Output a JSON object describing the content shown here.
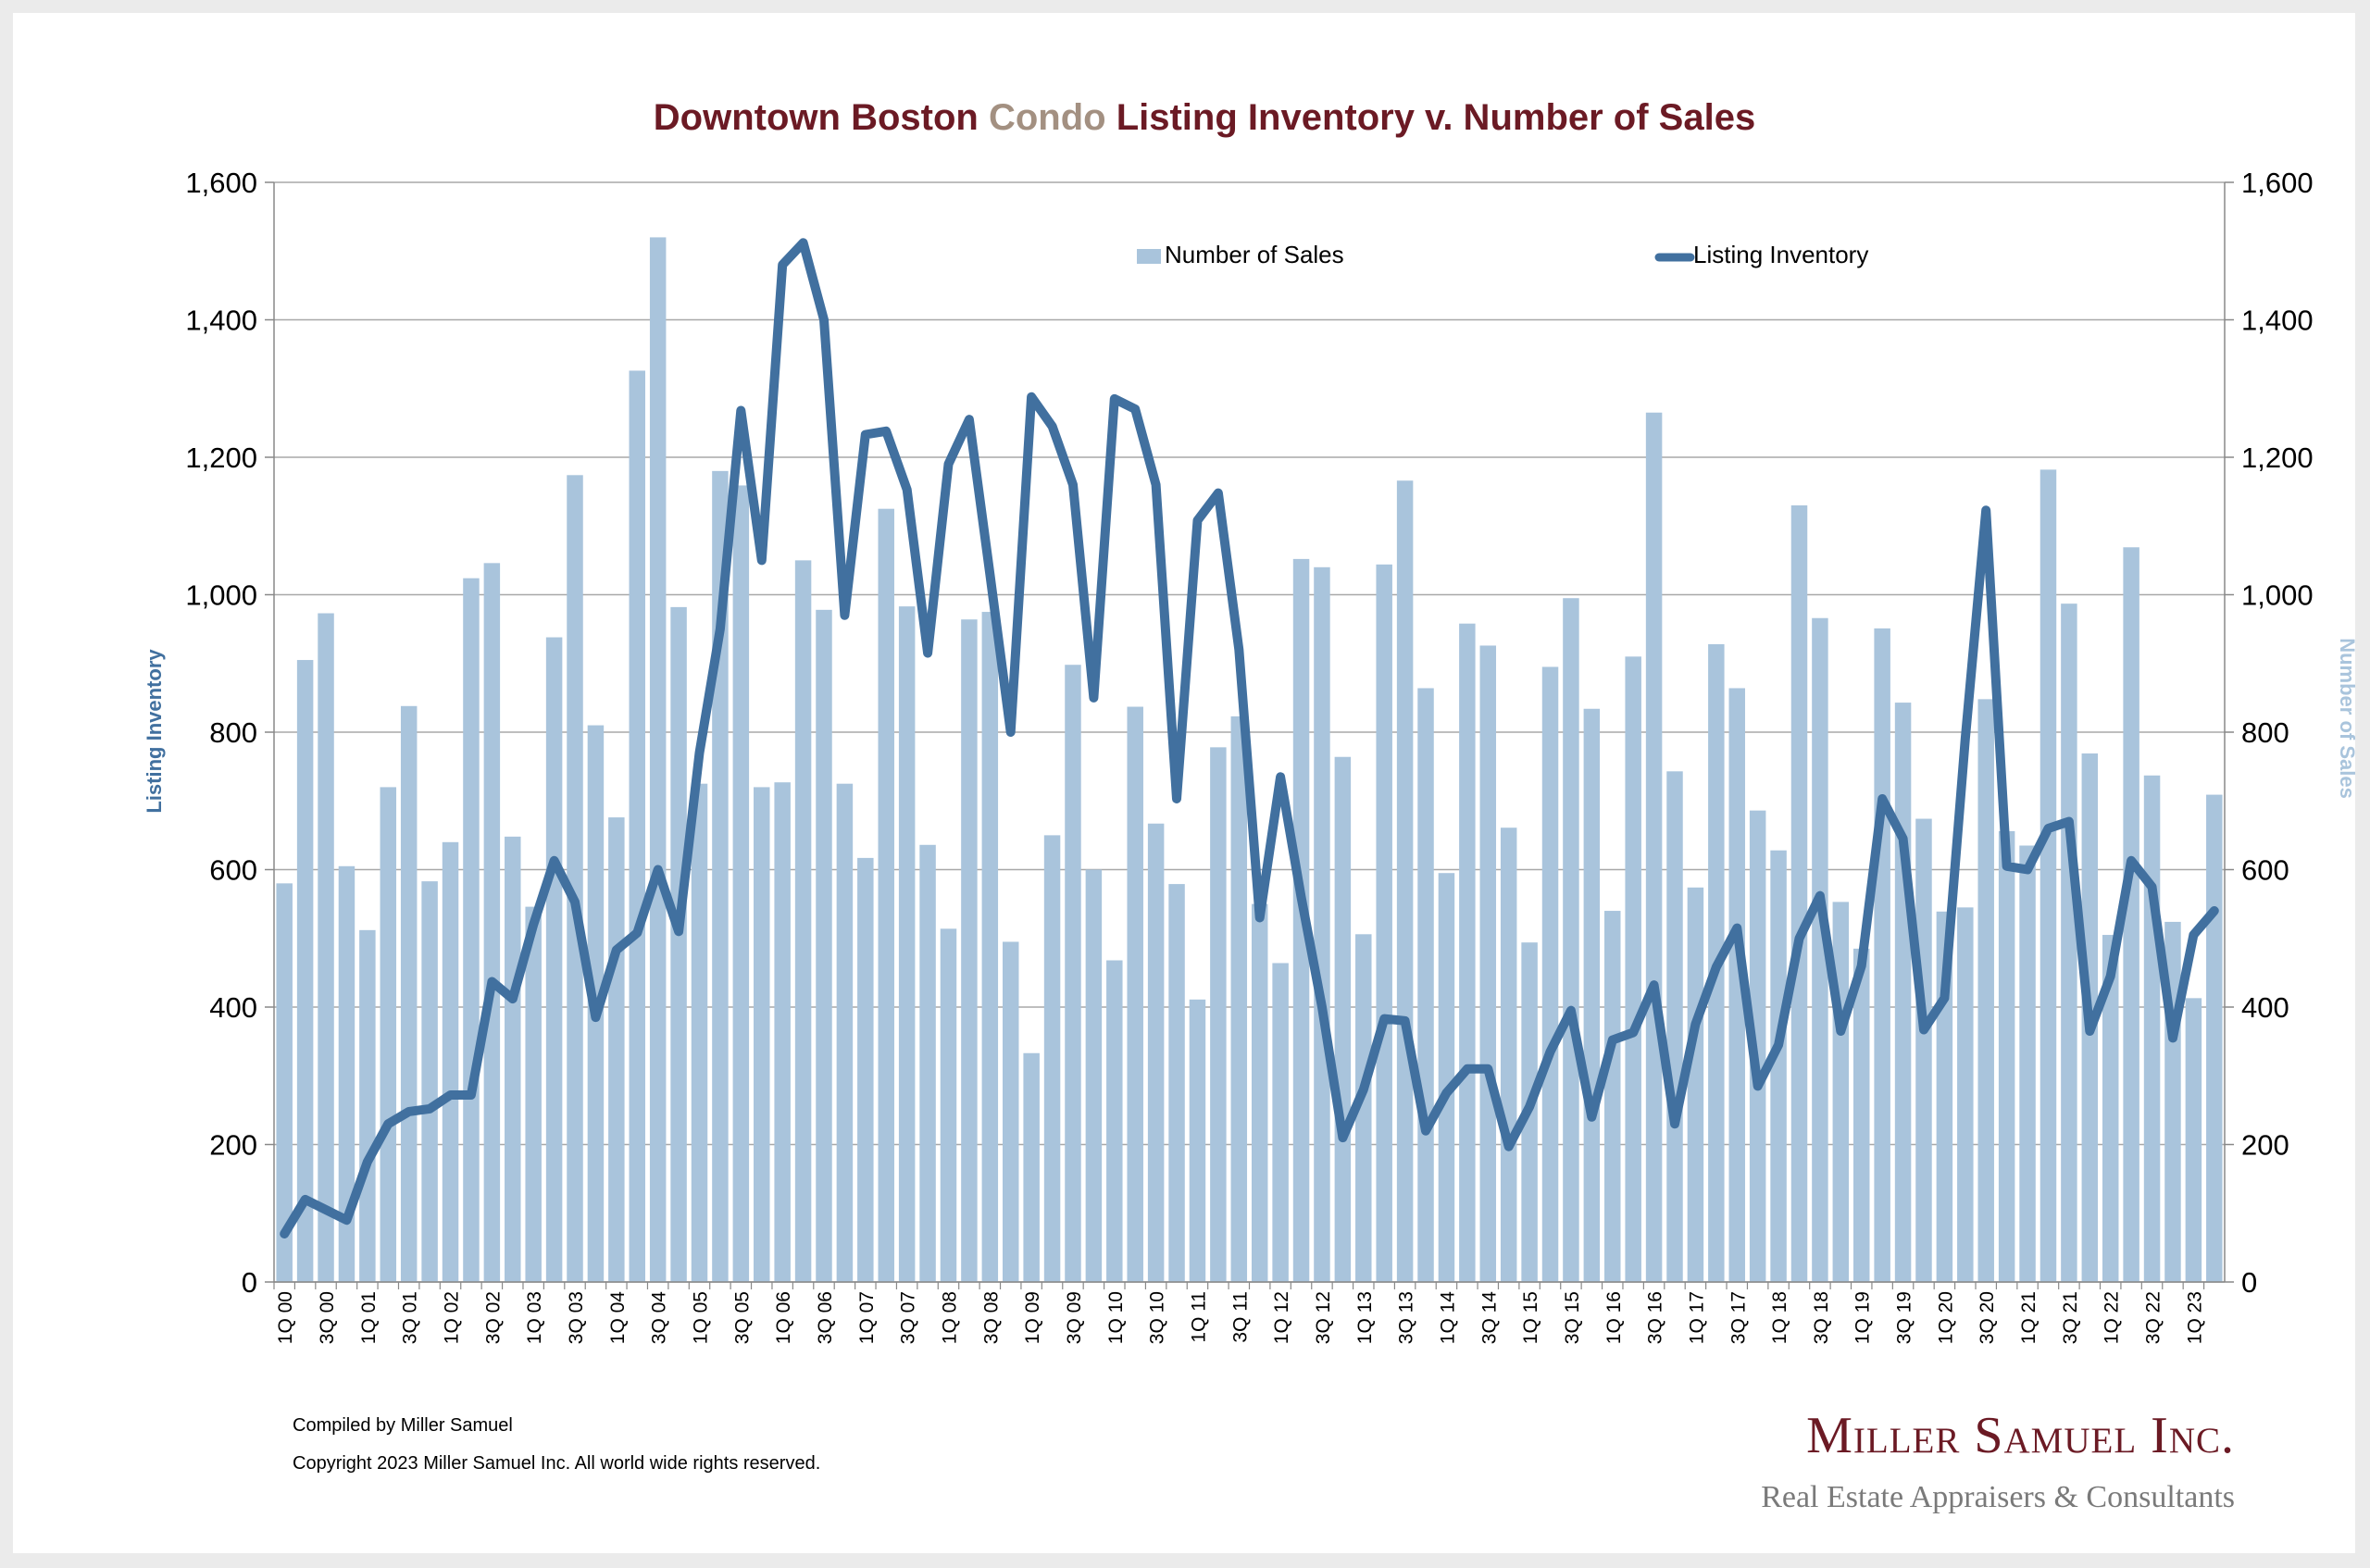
{
  "chart_data": {
    "type": "bar+line",
    "title": {
      "part1": "Downtown Boston ",
      "part2": "Condo",
      "part3": " Listing Inventory v. Number of Sales"
    },
    "left_axis_label": "Listing Inventory",
    "right_axis_label": "Number of Sales",
    "ylim": [
      0,
      1600
    ],
    "y_ticks": [
      0,
      200,
      400,
      600,
      800,
      1000,
      1200,
      1400,
      1600
    ],
    "y_tick_labels": [
      "0",
      "200",
      "400",
      "600",
      "800",
      "1,000",
      "1,200",
      "1,400",
      "1,600"
    ],
    "grid": true,
    "legend_position": "top-center",
    "colors": {
      "sales_bar": "#a9c4dc",
      "inventory_line": "#41709f",
      "title_dark": "#6b1a24",
      "title_accent": "#a39081"
    },
    "categories": [
      "1Q 00",
      "2Q 00",
      "3Q 00",
      "4Q 00",
      "1Q 01",
      "2Q 01",
      "3Q 01",
      "4Q 01",
      "1Q 02",
      "2Q 02",
      "3Q 02",
      "4Q 02",
      "1Q 03",
      "2Q 03",
      "3Q 03",
      "4Q 03",
      "1Q 04",
      "2Q 04",
      "3Q 04",
      "4Q 04",
      "1Q 05",
      "2Q 05",
      "3Q 05",
      "4Q 05",
      "1Q 06",
      "2Q 06",
      "3Q 06",
      "4Q 06",
      "1Q 07",
      "2Q 07",
      "3Q 07",
      "4Q 07",
      "1Q 08",
      "2Q 08",
      "3Q 08",
      "4Q 08",
      "1Q 09",
      "2Q 09",
      "3Q 09",
      "4Q 09",
      "1Q 10",
      "2Q 10",
      "3Q 10",
      "4Q 10",
      "1Q 11",
      "2Q 11",
      "3Q 11",
      "4Q 11",
      "1Q 12",
      "2Q 12",
      "3Q 12",
      "4Q 12",
      "1Q 13",
      "2Q 13",
      "3Q 13",
      "4Q 13",
      "1Q 14",
      "2Q 14",
      "3Q 14",
      "4Q 14",
      "1Q 15",
      "2Q 15",
      "3Q 15",
      "4Q 15",
      "1Q 16",
      "2Q 16",
      "3Q 16",
      "4Q 16",
      "1Q 17",
      "2Q 17",
      "3Q 17",
      "4Q 17",
      "1Q 18",
      "2Q 18",
      "3Q 18",
      "4Q 18",
      "1Q 19",
      "2Q 19",
      "3Q 19",
      "4Q 19",
      "1Q 20",
      "2Q 20",
      "3Q 20",
      "4Q 20",
      "1Q 21",
      "2Q 21",
      "3Q 21",
      "4Q 21",
      "1Q 22",
      "2Q 22",
      "3Q 22",
      "4Q 22",
      "1Q 23",
      "2Q 23"
    ],
    "x_tick_labels": [
      "1Q 00",
      "3Q 00",
      "1Q 01",
      "3Q 01",
      "1Q 02",
      "3Q 02",
      "1Q 03",
      "3Q 03",
      "1Q 04",
      "3Q 04",
      "1Q 05",
      "3Q 05",
      "1Q 06",
      "3Q 06",
      "1Q 07",
      "3Q 07",
      "1Q 08",
      "3Q 08",
      "1Q 09",
      "3Q 09",
      "1Q 10",
      "3Q 10",
      "1Q 11",
      "3Q 11",
      "1Q 12",
      "3Q 12",
      "1Q 13",
      "3Q 13",
      "1Q 14",
      "3Q 14",
      "1Q 15",
      "3Q 15",
      "1Q 16",
      "3Q 16",
      "1Q 17",
      "3Q 17",
      "1Q 18",
      "3Q 18",
      "1Q 19",
      "3Q 19",
      "1Q 20",
      "3Q 20",
      "1Q 21",
      "3Q 21",
      "1Q 22",
      "3Q 22",
      "1Q 23"
    ],
    "series": [
      {
        "name": "Number of Sales",
        "kind": "bar",
        "values": [
          580,
          905,
          973,
          605,
          512,
          720,
          838,
          583,
          640,
          1024,
          1046,
          648,
          546,
          938,
          1174,
          810,
          676,
          1326,
          1520,
          982,
          725,
          1180,
          1159,
          720,
          727,
          1050,
          978,
          725,
          617,
          1125,
          983,
          636,
          514,
          964,
          975,
          495,
          333,
          650,
          898,
          600,
          468,
          837,
          667,
          579,
          411,
          778,
          823,
          550,
          464,
          1052,
          1040,
          764,
          506,
          1044,
          1166,
          864,
          595,
          958,
          926,
          661,
          494,
          895,
          995,
          834,
          540,
          910,
          1265,
          743,
          574,
          928,
          864,
          686,
          628,
          1130,
          966,
          553,
          485,
          951,
          843,
          674,
          539,
          545,
          848,
          656,
          635,
          1182,
          987,
          769,
          505,
          1069,
          737,
          524,
          413,
          709
        ]
      },
      {
        "name": "Listing Inventory",
        "kind": "line",
        "values": [
          70,
          120,
          105,
          90,
          175,
          230,
          248,
          252,
          272,
          272,
          437,
          412,
          520,
          613,
          553,
          385,
          483,
          508,
          600,
          510,
          770,
          950,
          1268,
          1050,
          1480,
          1512,
          1400,
          970,
          1233,
          1238,
          1153,
          915,
          1190,
          1255,
          1030,
          800,
          1288,
          1245,
          1160,
          850,
          1285,
          1270,
          1160,
          703,
          1108,
          1148,
          920,
          530,
          735,
          560,
          400,
          210,
          280,
          383,
          380,
          220,
          275,
          310,
          310,
          197,
          255,
          335,
          395,
          240,
          352,
          363,
          432,
          230,
          375,
          458,
          515,
          285,
          345,
          500,
          562,
          365,
          460,
          703,
          645,
          367,
          413,
          790,
          1123,
          605,
          600,
          660,
          670,
          365,
          445,
          613,
          575,
          355,
          505,
          540
        ]
      }
    ],
    "footer": {
      "compiled": "Compiled by Miller Samuel",
      "copyright": "Copyright 2023 Miller Samuel Inc.  All world wide rights reserved."
    },
    "logo": {
      "name": "Miller Samuel Inc.",
      "tagline": "Real Estate Appraisers & Consultants"
    }
  }
}
